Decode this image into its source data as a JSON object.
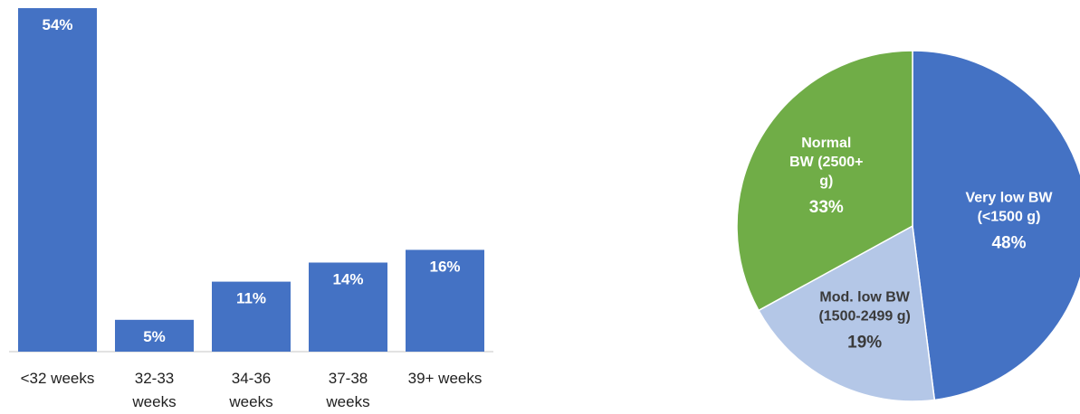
{
  "chart_data": [
    {
      "type": "bar",
      "categories": [
        "<32 weeks",
        "32-33 weeks",
        "34-36 weeks",
        "37-38 weeks",
        "39+ weeks"
      ],
      "category_lines": [
        [
          "<32 weeks"
        ],
        [
          "32-33",
          "weeks"
        ],
        [
          "34-36",
          "weeks"
        ],
        [
          "37-38",
          "weeks"
        ],
        [
          "39+ weeks"
        ]
      ],
      "values": [
        54,
        5,
        11,
        14,
        16
      ],
      "value_labels": [
        "54%",
        "5%",
        "11%",
        "14%",
        "16%"
      ],
      "unit": "%",
      "ylim": [
        0,
        54
      ],
      "color": "#4472C4",
      "grid": false
    },
    {
      "type": "pie",
      "slices": [
        {
          "label_lines": [
            "Very low BW",
            "(<1500 g)"
          ],
          "value": 48,
          "value_label": "48%",
          "color": "#4472C4",
          "text_color": "#ffffff"
        },
        {
          "label_lines": [
            "Mod. low BW",
            "(1500-2499 g)"
          ],
          "value": 19,
          "value_label": "19%",
          "color": "#B4C7E7",
          "text_color": "#3A3A3A"
        },
        {
          "label_lines": [
            "Normal",
            "BW (2500+",
            "g)"
          ],
          "value": 33,
          "value_label": "33%",
          "color": "#70AD47",
          "text_color": "#ffffff"
        }
      ]
    }
  ]
}
